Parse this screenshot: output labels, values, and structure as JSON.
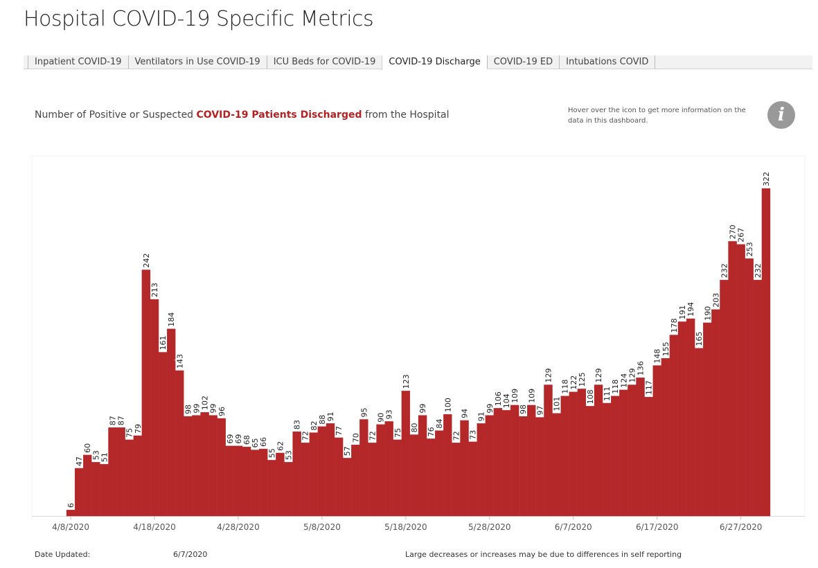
{
  "header": {
    "title": "Hospital COVID-19 Specific Metrics"
  },
  "tabs": [
    "Inpatient COVID-19",
    "Ventilators in Use COVID-19",
    "ICU Beds for COVID-19",
    "COVID-19 Discharge",
    "COVID-19 ED",
    "Intubations COVID"
  ],
  "subtitle": [
    "Number of Positive or Suspected ",
    "COVID-19 Patients Discharged",
    " from the Hospital"
  ],
  "info_text": "Hover over the icon to get more information on the data in this dashboard.",
  "info_icon": "i",
  "footer": {
    "date_label": "Date Updated:",
    "date_value": "6/7/2020",
    "note": "Large decreases or increases may be due to differences in self reporting"
  },
  "chart_data": {
    "type": "bar",
    "color": "#b5282a",
    "categories": [
      "4/8/2020",
      null,
      null,
      null,
      null,
      null,
      null,
      null,
      null,
      null,
      "4/18/2020",
      null,
      null,
      null,
      null,
      null,
      null,
      null,
      null,
      null,
      "4/28/2020",
      null,
      null,
      null,
      null,
      null,
      null,
      null,
      null,
      null,
      "5/8/2020",
      null,
      null,
      null,
      null,
      null,
      null,
      null,
      null,
      null,
      "5/18/2020",
      null,
      null,
      null,
      null,
      null,
      null,
      null,
      null,
      null,
      "5/28/2020",
      null,
      null,
      null,
      null,
      null,
      null,
      null,
      null,
      null,
      "6/7/2020",
      null,
      null,
      null,
      null,
      null,
      null,
      null,
      null,
      null,
      "6/17/2020",
      null,
      null,
      null,
      null,
      null,
      null,
      null,
      null,
      null,
      "6/27/2020",
      null,
      null,
      null
    ],
    "values": [
      6,
      47,
      60,
      53,
      51,
      87,
      87,
      75,
      79,
      242,
      213,
      161,
      184,
      143,
      98,
      99,
      102,
      99,
      96,
      69,
      69,
      68,
      65,
      66,
      55,
      62,
      53,
      83,
      72,
      82,
      88,
      91,
      77,
      57,
      70,
      95,
      72,
      90,
      93,
      75,
      123,
      80,
      99,
      76,
      84,
      100,
      72,
      94,
      73,
      91,
      99,
      106,
      104,
      109,
      98,
      109,
      97,
      129,
      101,
      118,
      122,
      125,
      108,
      129,
      111,
      118,
      124,
      129,
      136,
      117,
      148,
      155,
      178,
      191,
      194,
      165,
      190,
      203,
      232,
      270,
      267,
      253,
      232,
      322
    ],
    "ylim": [
      0,
      354
    ]
  }
}
